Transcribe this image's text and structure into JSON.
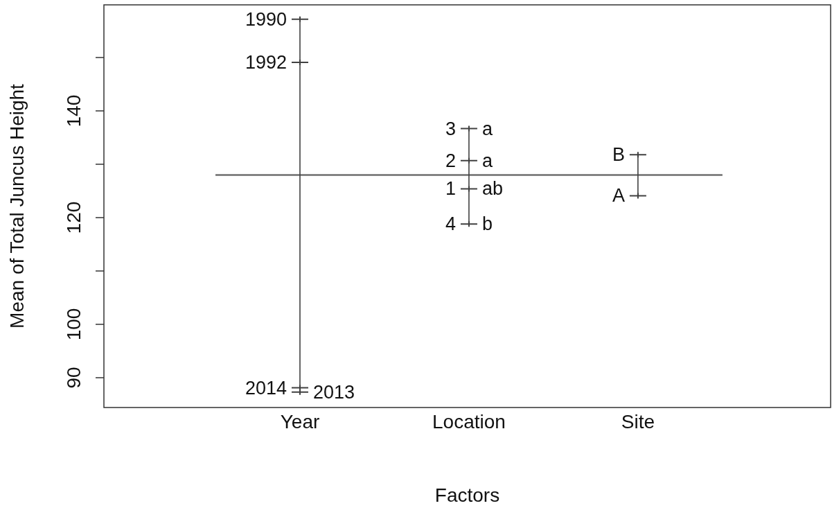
{
  "chart_data": {
    "type": "line",
    "xlabel": "Factors",
    "ylabel": "Mean of Total Juncus Height",
    "categories": [
      "Year",
      "Location",
      "Site"
    ],
    "series": [
      {
        "x": [
          "Year",
          "Year",
          "Year",
          "Year"
        ],
        "values": [
          157.2,
          149.1,
          88.1,
          87.3
        ],
        "color": "#404040"
      },
      {
        "x": [
          "Location",
          "Location",
          "Location",
          "Location"
        ],
        "values": [
          136.7,
          130.7,
          125.4,
          118.8
        ],
        "color": "#404040"
      },
      {
        "x": [
          "Site",
          "Site"
        ],
        "values": [
          131.8,
          124.1
        ],
        "color": "#404040"
      }
    ],
    "marker": "cross",
    "ylim": [
      84.4,
      159.9
    ],
    "yticks": [
      90,
      100,
      {
        "value": 110,
        "label": null
      },
      120,
      {
        "value": 130,
        "label": null
      },
      140,
      {
        "value": 150,
        "label": null
      }
    ],
    "ref_lines": [
      {
        "axis": "y",
        "value": 128.0,
        "color": "#6e6e6e"
      }
    ],
    "annotations": [
      {
        "text": "1990",
        "x": "Year",
        "y": 157.2
      },
      {
        "text": "1992",
        "x": "Year",
        "y": 149.1
      },
      {
        "text": "2014",
        "x": "Year",
        "y": 88.1
      },
      {
        "text": "2013",
        "x": "Year",
        "y": 87.3
      },
      {
        "text": "3",
        "x": "Location",
        "y": 136.7
      },
      {
        "text": "a",
        "x": "Location",
        "y": 136.7
      },
      {
        "text": "2",
        "x": "Location",
        "y": 130.7
      },
      {
        "text": "a",
        "x": "Location",
        "y": 130.7
      },
      {
        "text": "1",
        "x": "Location",
        "y": 125.4
      },
      {
        "text": "ab",
        "x": "Location",
        "y": 125.4
      },
      {
        "text": "4",
        "x": "Location",
        "y": 118.8
      },
      {
        "text": "b",
        "x": "Location",
        "y": 118.8
      },
      {
        "text": "B",
        "x": "Site",
        "y": 131.8
      },
      {
        "text": "A",
        "x": "Site",
        "y": 124.1
      }
    ]
  }
}
